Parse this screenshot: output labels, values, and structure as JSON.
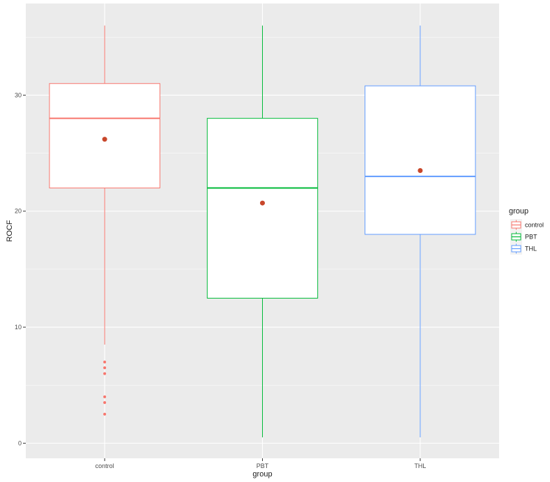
{
  "chart_data": {
    "type": "boxplot",
    "xlabel": "group",
    "ylabel": "ROCF",
    "ylim": [
      -1.3,
      37.9
    ],
    "y_ticks": [
      0,
      10,
      20,
      30
    ],
    "y_tick_labels": [
      "0",
      "10",
      "20",
      "30"
    ],
    "categories": [
      "control",
      "PBT",
      "THL"
    ],
    "grid": true,
    "legend": {
      "title": "group",
      "position": "right"
    },
    "series": [
      {
        "name": "control",
        "color": "#F8766D",
        "whisker_low": 8.5,
        "q1": 22,
        "median": 28,
        "q3": 31,
        "whisker_high": 36,
        "mean": 26.2,
        "outliers": [
          7,
          6.5,
          6,
          4,
          3.5,
          2.5
        ]
      },
      {
        "name": "PBT",
        "color": "#00BA38",
        "whisker_low": 0.5,
        "q1": 12.5,
        "median": 22,
        "q3": 28,
        "whisker_high": 36,
        "mean": 20.7,
        "outliers": []
      },
      {
        "name": "THL",
        "color": "#619CFF",
        "whisker_low": 0.5,
        "q1": 18,
        "median": 23,
        "q3": 30.8,
        "whisker_high": 36,
        "mean": 23.5,
        "outliers": []
      }
    ],
    "mean_point_color": "#C8472B",
    "panel_background": "#EBEBEB",
    "grid_color": "#FFFFFF"
  }
}
